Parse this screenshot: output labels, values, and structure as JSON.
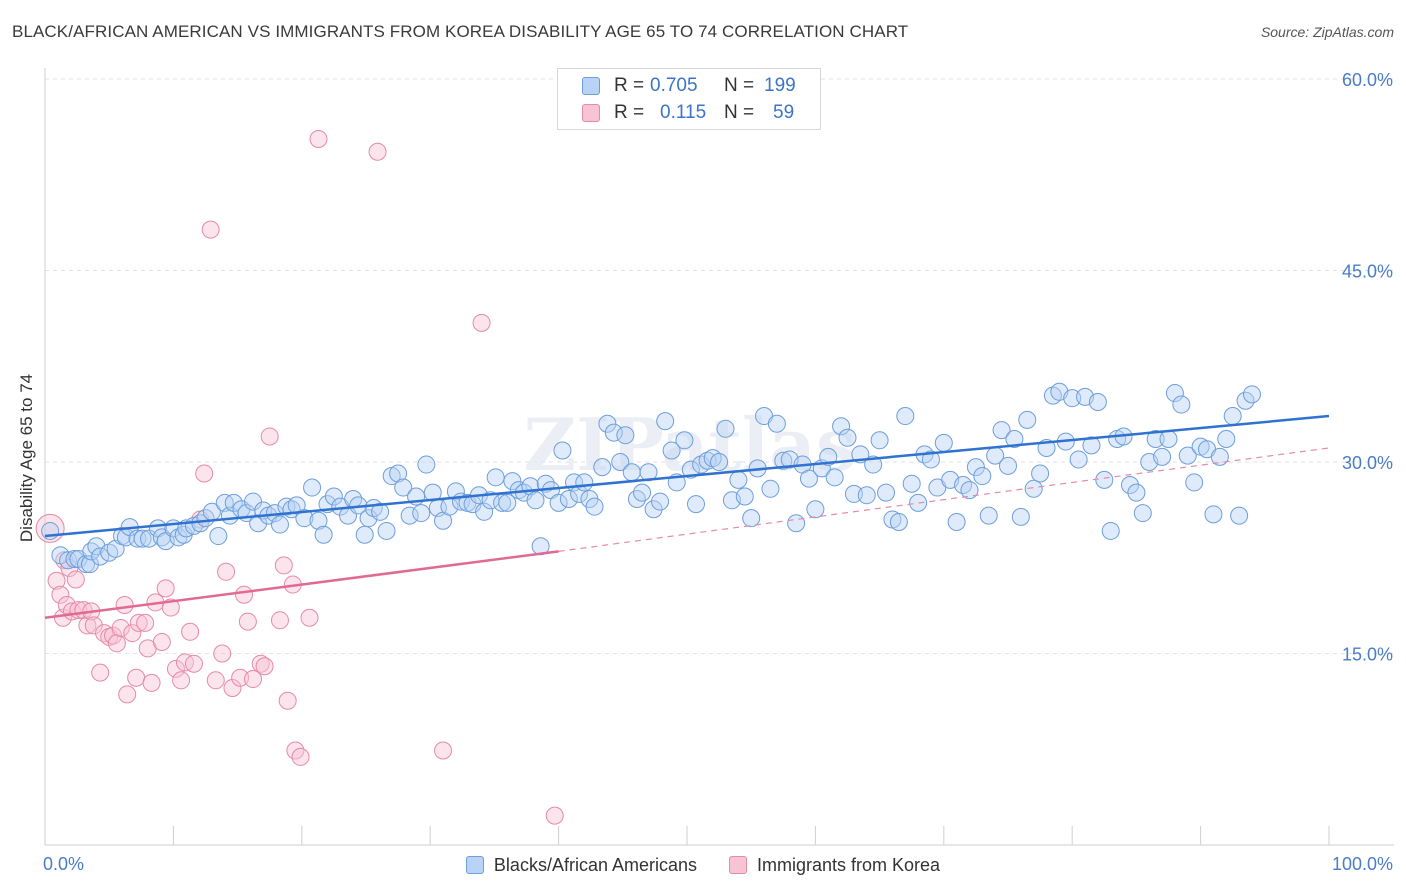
{
  "header": {
    "title": "BLACK/AFRICAN AMERICAN VS IMMIGRANTS FROM KOREA DISABILITY AGE 65 TO 74 CORRELATION CHART",
    "source": "Source: ZipAtlas.com"
  },
  "watermark": "ZIPatlas",
  "stats": {
    "rows": [
      {
        "r_label": "R =",
        "r_value": "0.705",
        "n_label": "N =",
        "n_value": "199",
        "color": "#6d9edc"
      },
      {
        "r_label": "R =",
        "r_value": "0.115",
        "n_label": "N =",
        "n_value": "59",
        "color": "#e58aa8"
      }
    ]
  },
  "legend": {
    "items": [
      {
        "label": "Blacks/African Americans",
        "color": "#6d9edc"
      },
      {
        "label": "Immigrants from Korea",
        "color": "#e58aa8"
      }
    ]
  },
  "chart_data": {
    "type": "scatter",
    "xlabel": "",
    "ylabel": "Disability Age 65 to 74",
    "xlim": [
      0,
      100
    ],
    "ylim": [
      0,
      60
    ],
    "x_tick_labels": [
      {
        "value": 0,
        "label": "0.0%"
      },
      {
        "value": 100,
        "label": "100.0%"
      }
    ],
    "y_tick_labels": [
      {
        "value": 15,
        "label": "15.0%"
      },
      {
        "value": 30,
        "label": "30.0%"
      },
      {
        "value": 45,
        "label": "45.0%"
      },
      {
        "value": 60,
        "label": "60.0%"
      }
    ],
    "grid": true,
    "legend_position": "bottom",
    "series": [
      {
        "name": "Blacks/African Americans",
        "color": "#6d9edc",
        "trend": {
          "x": [
            0,
            100
          ],
          "y": [
            24.2,
            33.6
          ]
        },
        "points": [
          [
            0.4,
            24.6
          ],
          [
            1.2,
            22.7
          ],
          [
            1.8,
            22.3
          ],
          [
            2.3,
            22.4
          ],
          [
            2.6,
            22.4
          ],
          [
            3.2,
            22.0
          ],
          [
            3.5,
            22.0
          ],
          [
            3.6,
            23.0
          ],
          [
            4.0,
            23.4
          ],
          [
            4.3,
            22.6
          ],
          [
            5.0,
            22.9
          ],
          [
            5.5,
            23.2
          ],
          [
            6.0,
            24.2
          ],
          [
            6.3,
            24.1
          ],
          [
            6.6,
            24.9
          ],
          [
            7.2,
            24.0
          ],
          [
            7.6,
            24.0
          ],
          [
            8.1,
            24.0
          ],
          [
            8.8,
            24.8
          ],
          [
            9.1,
            24.1
          ],
          [
            9.4,
            23.8
          ],
          [
            10.0,
            24.8
          ],
          [
            10.4,
            24.1
          ],
          [
            10.8,
            24.3
          ],
          [
            11.0,
            24.8
          ],
          [
            11.6,
            25.0
          ],
          [
            12.1,
            25.2
          ],
          [
            12.5,
            25.6
          ],
          [
            13.0,
            26.1
          ],
          [
            13.5,
            24.2
          ],
          [
            14.0,
            26.8
          ],
          [
            14.4,
            25.8
          ],
          [
            14.7,
            26.8
          ],
          [
            15.3,
            26.3
          ],
          [
            15.7,
            26.0
          ],
          [
            16.2,
            26.9
          ],
          [
            16.6,
            25.2
          ],
          [
            17.0,
            26.2
          ],
          [
            17.4,
            25.8
          ],
          [
            17.9,
            26.0
          ],
          [
            18.3,
            25.1
          ],
          [
            18.8,
            26.5
          ],
          [
            19.2,
            26.3
          ],
          [
            19.6,
            26.6
          ],
          [
            20.2,
            25.6
          ],
          [
            20.8,
            28.0
          ],
          [
            21.3,
            25.4
          ],
          [
            21.7,
            24.3
          ],
          [
            22.0,
            26.7
          ],
          [
            22.5,
            27.3
          ],
          [
            23.0,
            26.5
          ],
          [
            23.6,
            25.8
          ],
          [
            24.0,
            27.1
          ],
          [
            24.4,
            26.6
          ],
          [
            24.9,
            24.3
          ],
          [
            25.2,
            25.6
          ],
          [
            25.6,
            26.4
          ],
          [
            26.1,
            26.1
          ],
          [
            26.6,
            24.6
          ],
          [
            27.0,
            28.9
          ],
          [
            27.5,
            29.1
          ],
          [
            27.9,
            28.0
          ],
          [
            28.4,
            25.8
          ],
          [
            28.9,
            27.3
          ],
          [
            29.3,
            26.0
          ],
          [
            29.7,
            29.8
          ],
          [
            30.2,
            27.6
          ],
          [
            30.6,
            26.4
          ],
          [
            31.0,
            25.4
          ],
          [
            31.5,
            26.5
          ],
          [
            32.0,
            27.7
          ],
          [
            32.4,
            26.9
          ],
          [
            32.9,
            26.8
          ],
          [
            33.3,
            26.7
          ],
          [
            33.8,
            27.4
          ],
          [
            34.2,
            26.1
          ],
          [
            34.7,
            27.0
          ],
          [
            35.1,
            28.8
          ],
          [
            35.6,
            26.8
          ],
          [
            36.0,
            26.8
          ],
          [
            36.4,
            28.5
          ],
          [
            36.9,
            27.8
          ],
          [
            37.3,
            27.6
          ],
          [
            37.8,
            28.1
          ],
          [
            38.2,
            27.0
          ],
          [
            38.6,
            23.4
          ],
          [
            39.0,
            28.3
          ],
          [
            39.4,
            27.8
          ],
          [
            40.0,
            26.8
          ],
          [
            40.3,
            30.9
          ],
          [
            40.8,
            27.1
          ],
          [
            41.2,
            28.4
          ],
          [
            41.6,
            27.5
          ],
          [
            42.0,
            28.4
          ],
          [
            42.4,
            27.1
          ],
          [
            42.8,
            26.5
          ],
          [
            43.4,
            29.6
          ],
          [
            43.8,
            33.0
          ],
          [
            44.3,
            32.3
          ],
          [
            44.8,
            30.0
          ],
          [
            45.2,
            32.1
          ],
          [
            45.7,
            29.2
          ],
          [
            46.1,
            27.1
          ],
          [
            46.5,
            27.6
          ],
          [
            47.0,
            29.2
          ],
          [
            47.4,
            26.3
          ],
          [
            47.9,
            26.9
          ],
          [
            48.3,
            33.2
          ],
          [
            48.8,
            30.9
          ],
          [
            49.2,
            28.4
          ],
          [
            49.8,
            31.7
          ],
          [
            50.3,
            29.4
          ],
          [
            50.7,
            26.7
          ],
          [
            51.1,
            29.8
          ],
          [
            51.6,
            30.1
          ],
          [
            52.0,
            30.3
          ],
          [
            52.5,
            30.0
          ],
          [
            53.0,
            32.6
          ],
          [
            53.5,
            27.0
          ],
          [
            54.0,
            28.6
          ],
          [
            54.5,
            27.3
          ],
          [
            55.0,
            25.6
          ],
          [
            55.5,
            29.5
          ],
          [
            56.0,
            33.6
          ],
          [
            56.5,
            27.9
          ],
          [
            57.0,
            33.0
          ],
          [
            57.5,
            30.1
          ],
          [
            58.0,
            30.2
          ],
          [
            58.5,
            25.2
          ],
          [
            59.0,
            29.8
          ],
          [
            59.5,
            28.7
          ],
          [
            60.0,
            26.3
          ],
          [
            60.5,
            29.5
          ],
          [
            61.0,
            30.4
          ],
          [
            61.5,
            28.8
          ],
          [
            62.0,
            32.8
          ],
          [
            62.5,
            31.9
          ],
          [
            63.0,
            27.5
          ],
          [
            63.5,
            30.6
          ],
          [
            64.0,
            27.4
          ],
          [
            64.5,
            29.8
          ],
          [
            65.0,
            31.7
          ],
          [
            65.5,
            27.6
          ],
          [
            66.0,
            25.5
          ],
          [
            66.5,
            25.3
          ],
          [
            67.0,
            33.6
          ],
          [
            67.5,
            28.3
          ],
          [
            68.0,
            26.8
          ],
          [
            68.5,
            30.6
          ],
          [
            69.0,
            30.2
          ],
          [
            69.5,
            28.0
          ],
          [
            70.0,
            31.5
          ],
          [
            70.5,
            28.6
          ],
          [
            71.0,
            25.3
          ],
          [
            71.5,
            28.2
          ],
          [
            72.0,
            27.8
          ],
          [
            72.5,
            29.6
          ],
          [
            73.0,
            28.9
          ],
          [
            73.5,
            25.8
          ],
          [
            74.0,
            30.5
          ],
          [
            74.5,
            32.5
          ],
          [
            75.0,
            29.7
          ],
          [
            75.5,
            31.8
          ],
          [
            76.0,
            25.7
          ],
          [
            76.5,
            33.3
          ],
          [
            77.0,
            27.9
          ],
          [
            77.5,
            29.1
          ],
          [
            78.0,
            31.1
          ],
          [
            78.5,
            35.2
          ],
          [
            79.0,
            35.5
          ],
          [
            79.5,
            31.6
          ],
          [
            80.0,
            35.0
          ],
          [
            80.5,
            30.2
          ],
          [
            81.0,
            35.1
          ],
          [
            81.5,
            31.3
          ],
          [
            82.0,
            34.7
          ],
          [
            82.5,
            28.6
          ],
          [
            83.0,
            24.6
          ],
          [
            83.5,
            31.8
          ],
          [
            84.0,
            32.0
          ],
          [
            84.5,
            28.2
          ],
          [
            85.0,
            27.6
          ],
          [
            85.5,
            26.0
          ],
          [
            86.0,
            30.0
          ],
          [
            86.5,
            31.8
          ],
          [
            87.0,
            30.4
          ],
          [
            87.5,
            31.8
          ],
          [
            88.0,
            35.4
          ],
          [
            88.5,
            34.5
          ],
          [
            89.0,
            30.5
          ],
          [
            89.5,
            28.4
          ],
          [
            90.0,
            31.2
          ],
          [
            90.5,
            31.0
          ],
          [
            91.0,
            25.9
          ],
          [
            91.5,
            30.4
          ],
          [
            92.0,
            31.8
          ],
          [
            92.5,
            33.6
          ],
          [
            93.0,
            25.8
          ],
          [
            93.5,
            34.8
          ],
          [
            94.0,
            35.3
          ]
        ]
      },
      {
        "name": "Immigrants from Korea",
        "color": "#e58aa8",
        "trend": {
          "x": [
            0,
            40
          ],
          "y": [
            17.8,
            23.0
          ]
        },
        "trend_dashed": {
          "x": [
            40,
            100
          ],
          "y": [
            23.0,
            31.1
          ]
        },
        "points": [
          [
            0.4,
            24.8
          ],
          [
            0.9,
            20.7
          ],
          [
            1.2,
            19.6
          ],
          [
            1.4,
            17.8
          ],
          [
            1.5,
            22.3
          ],
          [
            1.7,
            18.8
          ],
          [
            1.9,
            21.7
          ],
          [
            2.1,
            18.3
          ],
          [
            2.4,
            20.8
          ],
          [
            2.6,
            18.4
          ],
          [
            3.0,
            18.4
          ],
          [
            3.3,
            17.2
          ],
          [
            3.6,
            18.3
          ],
          [
            3.8,
            17.2
          ],
          [
            4.3,
            13.5
          ],
          [
            4.6,
            16.6
          ],
          [
            5.0,
            16.3
          ],
          [
            5.3,
            16.4
          ],
          [
            5.6,
            15.8
          ],
          [
            5.9,
            17.0
          ],
          [
            6.2,
            18.8
          ],
          [
            6.4,
            11.8
          ],
          [
            6.8,
            16.6
          ],
          [
            7.1,
            13.1
          ],
          [
            7.3,
            17.4
          ],
          [
            7.8,
            17.4
          ],
          [
            8.0,
            15.4
          ],
          [
            8.3,
            12.7
          ],
          [
            8.6,
            19.0
          ],
          [
            9.1,
            15.9
          ],
          [
            9.4,
            20.1
          ],
          [
            9.8,
            18.6
          ],
          [
            10.2,
            13.8
          ],
          [
            10.6,
            12.9
          ],
          [
            10.9,
            14.3
          ],
          [
            11.3,
            16.7
          ],
          [
            11.6,
            14.2
          ],
          [
            12.1,
            25.5
          ],
          [
            12.4,
            29.1
          ],
          [
            12.9,
            48.2
          ],
          [
            13.3,
            12.9
          ],
          [
            13.8,
            15.0
          ],
          [
            14.1,
            21.4
          ],
          [
            14.6,
            12.3
          ],
          [
            15.2,
            13.1
          ],
          [
            15.5,
            19.6
          ],
          [
            15.8,
            17.5
          ],
          [
            16.2,
            13.0
          ],
          [
            16.8,
            14.2
          ],
          [
            17.1,
            14.0
          ],
          [
            17.5,
            32.0
          ],
          [
            18.3,
            17.6
          ],
          [
            18.6,
            21.9
          ],
          [
            18.9,
            11.3
          ],
          [
            19.3,
            20.4
          ],
          [
            19.5,
            7.4
          ],
          [
            19.9,
            6.9
          ],
          [
            20.6,
            17.8
          ],
          [
            21.3,
            55.3
          ],
          [
            25.9,
            54.3
          ],
          [
            31.0,
            7.4
          ],
          [
            34.0,
            40.9
          ],
          [
            39.7,
            2.3
          ]
        ]
      }
    ]
  }
}
